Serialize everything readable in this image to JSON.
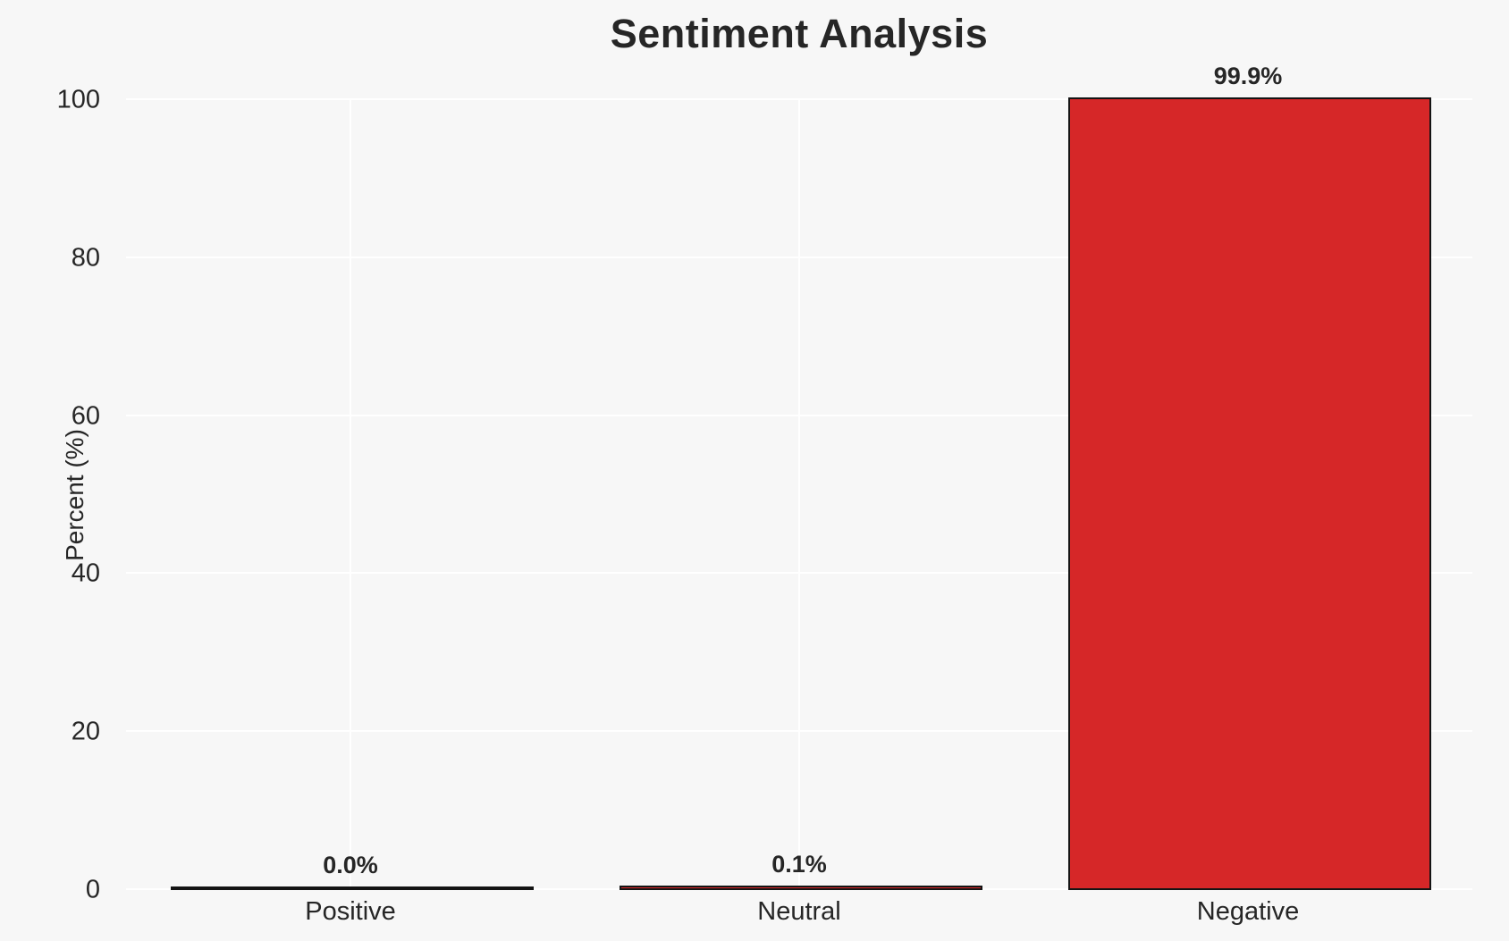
{
  "chart_data": {
    "type": "bar",
    "title": "Sentiment Analysis",
    "xlabel": "",
    "ylabel": "Percent (%)",
    "categories": [
      "Positive",
      "Neutral",
      "Negative"
    ],
    "values": [
      0.0,
      0.1,
      99.9
    ],
    "value_labels": [
      "0.0%",
      "0.1%",
      "99.9%"
    ],
    "ylim": [
      0,
      100
    ],
    "yticks": [
      0,
      20,
      40,
      60,
      80,
      100
    ],
    "ytick_labels": [
      "0",
      "20",
      "40",
      "60",
      "80",
      "100"
    ],
    "grid": "on",
    "legend": "none",
    "colors": {
      "background": "#f7f7f7",
      "gridline": "#ffffff",
      "bar_fill": "#d62728",
      "bar_edge": "#141414",
      "text": "#262626"
    }
  }
}
